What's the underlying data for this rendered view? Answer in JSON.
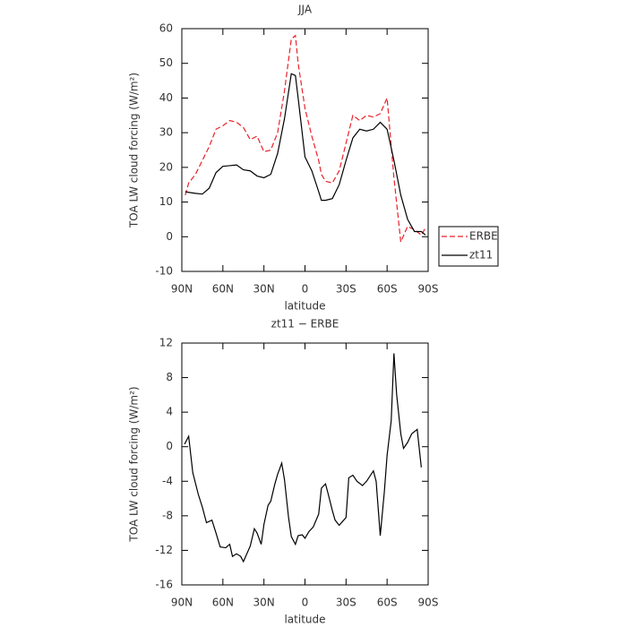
{
  "chart_data": [
    {
      "type": "line",
      "title": "JJA",
      "x_label": "latitude",
      "y_label": "TOA LW cloud forcing (W/m²)",
      "xlim": [
        90,
        -90
      ],
      "xticks": [
        {
          "value": 90,
          "label": "90N"
        },
        {
          "value": 60,
          "label": "60N"
        },
        {
          "value": 30,
          "label": "30N"
        },
        0,
        {
          "value": -30,
          "label": "30S"
        },
        {
          "value": -60,
          "label": "60S"
        },
        {
          "value": -90,
          "label": "90S"
        }
      ],
      "ylim": [
        -10,
        60
      ],
      "yticks": [
        -10,
        0,
        10,
        20,
        30,
        40,
        50,
        60
      ],
      "legend": "right",
      "x": [
        87.5,
        85,
        80,
        75,
        70,
        65,
        60,
        55,
        50,
        45,
        40,
        35,
        30,
        25,
        20,
        15,
        10,
        7,
        5,
        0,
        -5,
        -10,
        -12,
        -15,
        -20,
        -25,
        -30,
        -35,
        -40,
        -45,
        -50,
        -55,
        -60,
        -65,
        -70,
        -75,
        -80,
        -85,
        -88
      ],
      "series": [
        {
          "name": "ERBE",
          "color": "#e8222a",
          "line_style": "dashed",
          "values": [
            12,
            15.5,
            18,
            22,
            26,
            31,
            32,
            33.5,
            33,
            31.5,
            28,
            29,
            24.5,
            25,
            30,
            42,
            57,
            58,
            50,
            37,
            29,
            22,
            18,
            16,
            15.5,
            19,
            27,
            35,
            33.5,
            35,
            34.5,
            35.5,
            40,
            17,
            -1.5,
            3,
            2,
            0.5,
            2.5
          ]
        },
        {
          "name": "zt11",
          "color": "#000000",
          "line_style": "solid",
          "values": [
            13,
            12.8,
            12.5,
            12.3,
            14,
            18.5,
            20.3,
            20.5,
            20.7,
            19.3,
            19,
            17.5,
            17,
            18,
            24,
            34,
            47,
            46.5,
            40,
            23,
            19,
            13,
            10.5,
            10.5,
            11,
            15,
            22,
            28.5,
            31,
            30.5,
            31,
            33,
            31,
            22,
            12,
            5,
            1.5,
            1.5,
            0.5
          ]
        }
      ]
    },
    {
      "type": "line",
      "title": "zt11 − ERBE",
      "x_label": "latitude",
      "y_label": "TOA LW cloud forcing (W/m²)",
      "xlim": [
        90,
        -90
      ],
      "xticks": [
        {
          "value": 90,
          "label": "90N"
        },
        {
          "value": 60,
          "label": "60N"
        },
        {
          "value": 30,
          "label": "30N"
        },
        0,
        {
          "value": -30,
          "label": "30S"
        },
        {
          "value": -60,
          "label": "60S"
        },
        {
          "value": -90,
          "label": "90S"
        }
      ],
      "ylim": [
        -16,
        12
      ],
      "yticks": [
        -16,
        -12,
        -8,
        -4,
        0,
        4,
        8,
        12
      ],
      "x": [
        88,
        85,
        82,
        78,
        75,
        72,
        68,
        65,
        62,
        58,
        55,
        53,
        50,
        47,
        45,
        40,
        37,
        35,
        32,
        30,
        27,
        25,
        22,
        20,
        17,
        15,
        12,
        10,
        7,
        5,
        2,
        0,
        -3,
        -6,
        -10,
        -12,
        -15,
        -17,
        -20,
        -22,
        -25,
        -30,
        -32,
        -35,
        -38,
        -42,
        -45,
        -50,
        -52,
        -55,
        -58,
        -60,
        -63,
        -65,
        -67,
        -70,
        -72,
        -75,
        -78,
        -82,
        -85
      ],
      "color": "#000000",
      "values": [
        0.3,
        1.2,
        -3,
        -5.5,
        -7,
        -8.8,
        -8.5,
        -10,
        -11.6,
        -11.7,
        -11.3,
        -12.7,
        -12.4,
        -12.7,
        -13.3,
        -11.5,
        -9.5,
        -10,
        -11.3,
        -9,
        -6.8,
        -6.3,
        -4.3,
        -3.2,
        -1.9,
        -3.8,
        -8.2,
        -10.4,
        -11.3,
        -10.3,
        -10.2,
        -10.6,
        -9.8,
        -9.3,
        -7.8,
        -4.8,
        -4.3,
        -5.5,
        -7.4,
        -8.5,
        -9.1,
        -8.2,
        -3.6,
        -3.3,
        -4,
        -4.5,
        -4,
        -2.8,
        -4,
        -10.3,
        -5.2,
        -1,
        3,
        10.8,
        6,
        1.5,
        -0.2,
        0.5,
        1.5,
        2,
        -2.4
      ]
    }
  ]
}
